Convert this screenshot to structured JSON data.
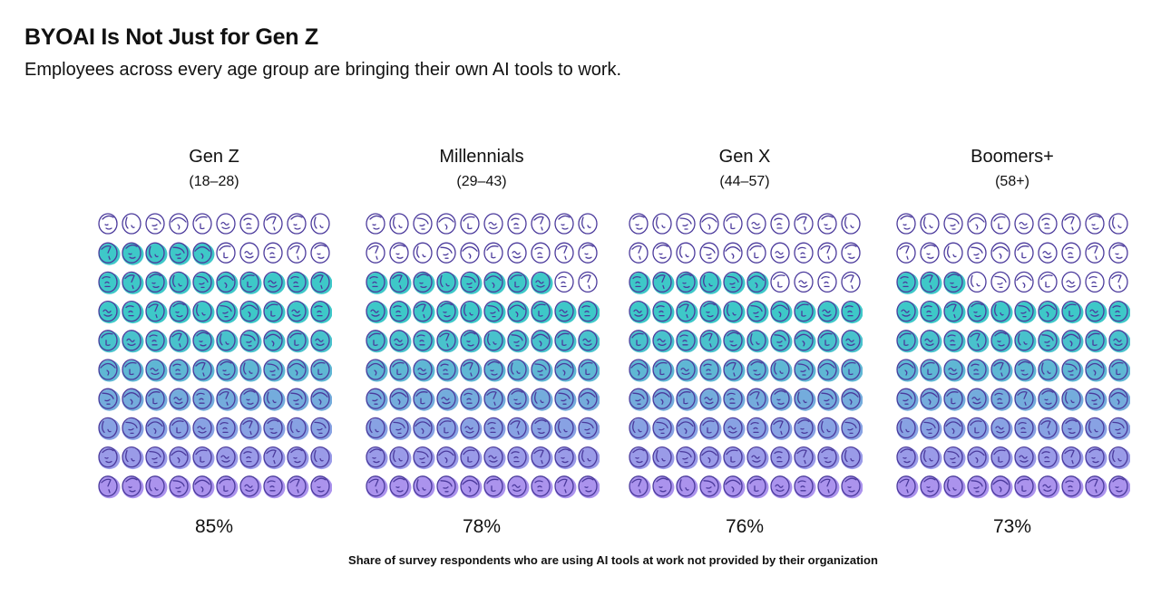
{
  "header": {
    "title": "BYOAI Is Not Just for Gen Z",
    "subtitle": "Employees across every age group are bringing their own AI tools to work."
  },
  "chart_data": {
    "type": "pictogram",
    "title": "BYOAI Is Not Just for Gen Z",
    "subtitle": "Employees across every age group are bringing their own AI tools to work.",
    "unit_description": "Each face represents 1% of respondents (10×10 grid of 100 faces)",
    "grid": {
      "rows": 10,
      "cols": 10,
      "fill_order": "bottom-up"
    },
    "series": [
      {
        "name": "Gen Z",
        "range": "(18–28)",
        "value": 85,
        "label": "85%"
      },
      {
        "name": "Millennials",
        "range": "(29–43)",
        "value": 78,
        "label": "78%"
      },
      {
        "name": "Gen X",
        "range": "(44–57)",
        "value": 76,
        "label": "76%"
      },
      {
        "name": "Boomers+",
        "range": "(58+)",
        "value": 73,
        "label": "73%"
      }
    ],
    "colors": {
      "outline": "#4b3a9c",
      "fill_gradient_top": "#3ec8c8",
      "fill_gradient_mid": "#7fa6e0",
      "fill_gradient_bottom": "#b48ff0"
    },
    "footnote": "Share of survey respondents who are using AI tools at work not provided by their organization"
  }
}
